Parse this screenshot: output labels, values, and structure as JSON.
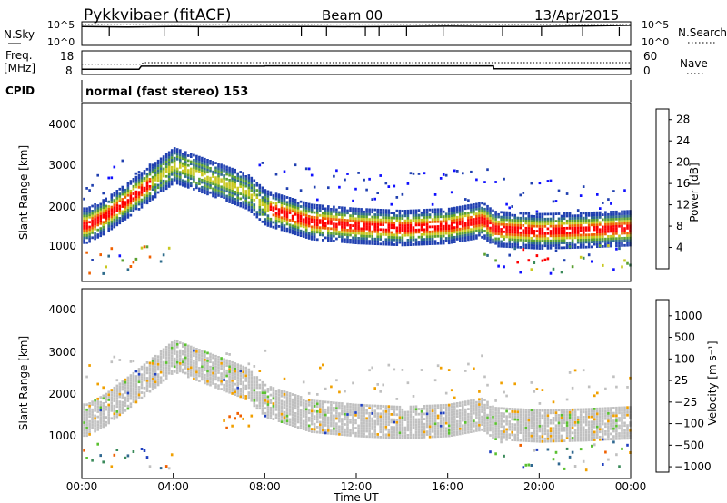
{
  "chart_data": [
    {
      "type": "line",
      "panel": "noise",
      "title": "Pykkvibaer (fitACF)",
      "subtitle": "Beam 00",
      "date": "13/Apr/2015",
      "left_label": "N.Sky",
      "right_label": "N.Search",
      "left_ticks": [
        "10^5",
        "10^0"
      ],
      "right_ticks": [
        "10^5",
        "10^0"
      ],
      "series": [
        {
          "name": "N.Sky",
          "style": "solid",
          "x": [
            0,
            2,
            4,
            6,
            8,
            10,
            12,
            14,
            16,
            18,
            20,
            22,
            24
          ],
          "values": [
            0.8,
            0.78,
            0.8,
            0.79,
            0.8,
            0.8,
            0.79,
            0.8,
            0.81,
            0.8,
            0.8,
            0.82,
            0.85
          ]
        },
        {
          "name": "N.Search",
          "style": "dotted",
          "x": [
            0,
            4,
            8,
            12,
            16,
            20,
            24
          ],
          "values": [
            0.88,
            0.87,
            0.88,
            0.87,
            0.88,
            0.88,
            0.88
          ]
        }
      ],
      "ylim": [
        0,
        1
      ]
    },
    {
      "type": "line",
      "panel": "frequency",
      "left_label_top": "Freq.",
      "left_label_bottom": "[MHz]",
      "left_ticks": [
        18,
        8
      ],
      "right_label": "Nave",
      "right_ticks": [
        60,
        0
      ],
      "series": [
        {
          "name": "Freq.",
          "style": "solid",
          "x": [
            0,
            2.5,
            2.6,
            8,
            8.01,
            18,
            18.01,
            24
          ],
          "values": [
            10.2,
            10.2,
            11.5,
            11.5,
            11.6,
            11.6,
            10.4,
            10.4
          ]
        },
        {
          "name": "Nave",
          "style": "dotted",
          "x": [
            0,
            2.6,
            2.7,
            24
          ],
          "values": [
            26,
            26,
            30,
            30
          ]
        }
      ],
      "ylim": [
        8,
        18
      ]
    },
    {
      "type": "table",
      "panel": "cpid",
      "label": "CPID",
      "text": "normal (fast stereo) 153"
    },
    {
      "type": "heatmap",
      "panel": "power",
      "ylabel": "Slant Range [km]",
      "yticks": [
        1000,
        2000,
        3000,
        4000
      ],
      "ylim": [
        180,
        4600
      ],
      "xlim": [
        0,
        24
      ],
      "colorbar": {
        "label": "Power [dB]",
        "ticks": [
          4,
          8,
          12,
          16,
          20,
          24,
          28
        ],
        "range": [
          0,
          30
        ],
        "colors": [
          "#1010ff",
          "#2040b0",
          "#2e6c8c",
          "#3a8a5a",
          "#5aa030",
          "#c8c820",
          "#f0a000",
          "#f06000",
          "#ff0000"
        ]
      },
      "echo_bands": [
        {
          "x": [
            0.2,
            1.0,
            2.0,
            3.2,
            4.0,
            6.0,
            7.2,
            8.0,
            10.0,
            12.0,
            14.0,
            16.0,
            17.5,
            18.0,
            20.0,
            22.0,
            24.0
          ],
          "range": [
            1560,
            1800,
            2200,
            2700,
            3050,
            2650,
            2400,
            2000,
            1650,
            1550,
            1500,
            1550,
            1700,
            1480,
            1420,
            1450,
            1500
          ]
        }
      ]
    },
    {
      "type": "heatmap",
      "panel": "velocity",
      "ylabel": "Slant Range [km]",
      "yticks": [
        1000,
        2000,
        3000,
        4000
      ],
      "ylim": [
        180,
        4600
      ],
      "xlim": [
        0,
        24
      ],
      "colorbar": {
        "label": "Velocity [m s⁻¹]",
        "ticks": [
          "1000",
          "500",
          "100",
          "25",
          "−25",
          "−100",
          "−500",
          "−1000"
        ],
        "colors": [
          "#2040c0",
          "#306890",
          "#3a8a5a",
          "#5ac030",
          "#c0c0c0",
          "#f0a000",
          "#f06000",
          "#ff0000"
        ]
      },
      "xlabel": "Time UT",
      "xticks": [
        "00:00",
        "04:00",
        "08:00",
        "12:00",
        "16:00",
        "20:00",
        "00:00"
      ]
    }
  ]
}
